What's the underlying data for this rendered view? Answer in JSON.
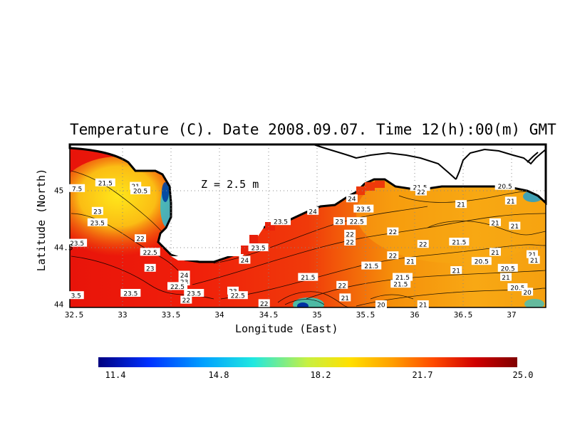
{
  "map": {
    "title": "Temperature (C). Date 2008.09.07. Time 12(h):00(m) GMT",
    "depth_label": "Z = 2.5 m",
    "xlabel": "Longitude (East)",
    "ylabel": "Latitude (North)",
    "x_ticks": [
      "32.5",
      "33",
      "33.5",
      "34",
      "34.5",
      "35",
      "35.5",
      "36",
      "36.5",
      "37"
    ],
    "y_ticks": [
      "45",
      "44.5",
      "44"
    ],
    "colorbar": {
      "ticks": [
        "11.4",
        "14.8",
        "18.2",
        "21.7",
        "25.0"
      ],
      "colors": [
        "#000080",
        "#0040ff",
        "#00c0ff",
        "#40ffc0",
        "#c0ff40",
        "#ffe000",
        "#ffa000",
        "#ff5000",
        "#e00000",
        "#800000"
      ]
    },
    "contour_labels": [
      {
        "text": "21.5",
        "lon": 32.82,
        "lat": 45.07
      },
      {
        "text": "21",
        "lon": 33.13,
        "lat": 45.04
      },
      {
        "text": "20.5",
        "lon": 33.18,
        "lat": 45.0
      },
      {
        "text": "7.5",
        "lon": 32.53,
        "lat": 45.02
      },
      {
        "text": "23",
        "lon": 32.74,
        "lat": 44.82
      },
      {
        "text": "23.5",
        "lon": 32.74,
        "lat": 44.72
      },
      {
        "text": "23.5",
        "lon": 32.53,
        "lat": 44.54
      },
      {
        "text": "22",
        "lon": 33.18,
        "lat": 44.58
      },
      {
        "text": "22.5",
        "lon": 33.28,
        "lat": 44.46
      },
      {
        "text": "23",
        "lon": 33.28,
        "lat": 44.32
      },
      {
        "text": "24",
        "lon": 33.63,
        "lat": 44.26
      },
      {
        "text": "23",
        "lon": 33.63,
        "lat": 44.2
      },
      {
        "text": "22.5",
        "lon": 33.56,
        "lat": 44.16
      },
      {
        "text": "22",
        "lon": 33.65,
        "lat": 44.04
      },
      {
        "text": "23.5",
        "lon": 33.73,
        "lat": 44.1
      },
      {
        "text": "23.5",
        "lon": 33.08,
        "lat": 44.1
      },
      {
        "text": "3.5",
        "lon": 32.52,
        "lat": 44.08
      },
      {
        "text": "23",
        "lon": 34.13,
        "lat": 44.12
      },
      {
        "text": "22.5",
        "lon": 34.18,
        "lat": 44.08
      },
      {
        "text": "22",
        "lon": 34.45,
        "lat": 44.01
      },
      {
        "text": "24",
        "lon": 34.25,
        "lat": 44.39
      },
      {
        "text": "23.5",
        "lon": 34.39,
        "lat": 44.5
      },
      {
        "text": "23.5",
        "lon": 34.62,
        "lat": 44.73
      },
      {
        "text": "24",
        "lon": 34.95,
        "lat": 44.82
      },
      {
        "text": "24",
        "lon": 35.35,
        "lat": 44.93
      },
      {
        "text": "23.5",
        "lon": 35.47,
        "lat": 44.84
      },
      {
        "text": "23",
        "lon": 35.22,
        "lat": 44.73
      },
      {
        "text": "22.5",
        "lon": 35.4,
        "lat": 44.73
      },
      {
        "text": "22",
        "lon": 35.33,
        "lat": 44.62
      },
      {
        "text": "22",
        "lon": 35.33,
        "lat": 44.55
      },
      {
        "text": "22",
        "lon": 35.77,
        "lat": 44.64
      },
      {
        "text": "22",
        "lon": 36.08,
        "lat": 44.53
      },
      {
        "text": "21.5",
        "lon": 36.45,
        "lat": 44.55
      },
      {
        "text": "22",
        "lon": 35.77,
        "lat": 44.43
      },
      {
        "text": "21",
        "lon": 35.95,
        "lat": 44.38
      },
      {
        "text": "21.5",
        "lon": 35.55,
        "lat": 44.34
      },
      {
        "text": "21",
        "lon": 36.42,
        "lat": 44.3
      },
      {
        "text": "20.5",
        "lon": 36.68,
        "lat": 44.38
      },
      {
        "text": "21",
        "lon": 36.82,
        "lat": 44.46
      },
      {
        "text": "21",
        "lon": 37.2,
        "lat": 44.44
      },
      {
        "text": "21",
        "lon": 37.22,
        "lat": 44.39
      },
      {
        "text": "20.5",
        "lon": 36.95,
        "lat": 44.32
      },
      {
        "text": "21",
        "lon": 36.93,
        "lat": 44.24
      },
      {
        "text": "20.5",
        "lon": 37.05,
        "lat": 44.15
      },
      {
        "text": "20",
        "lon": 37.15,
        "lat": 44.11
      },
      {
        "text": "21.5",
        "lon": 35.87,
        "lat": 44.24
      },
      {
        "text": "21.5",
        "lon": 35.85,
        "lat": 44.18
      },
      {
        "text": "21.5",
        "lon": 34.9,
        "lat": 44.24
      },
      {
        "text": "22",
        "lon": 35.25,
        "lat": 44.17
      },
      {
        "text": "21",
        "lon": 35.28,
        "lat": 44.06
      },
      {
        "text": "20",
        "lon": 35.65,
        "lat": 44.0
      },
      {
        "text": "21",
        "lon": 36.08,
        "lat": 44.0
      },
      {
        "text": "21.5",
        "lon": 36.05,
        "lat": 45.03
      },
      {
        "text": "22",
        "lon": 36.06,
        "lat": 44.99
      },
      {
        "text": "20.5",
        "lon": 36.92,
        "lat": 45.04
      },
      {
        "text": "21",
        "lon": 36.47,
        "lat": 44.88
      },
      {
        "text": "21",
        "lon": 36.98,
        "lat": 44.91
      },
      {
        "text": "21",
        "lon": 36.82,
        "lat": 44.72
      },
      {
        "text": "21",
        "lon": 37.02,
        "lat": 44.69
      }
    ]
  }
}
